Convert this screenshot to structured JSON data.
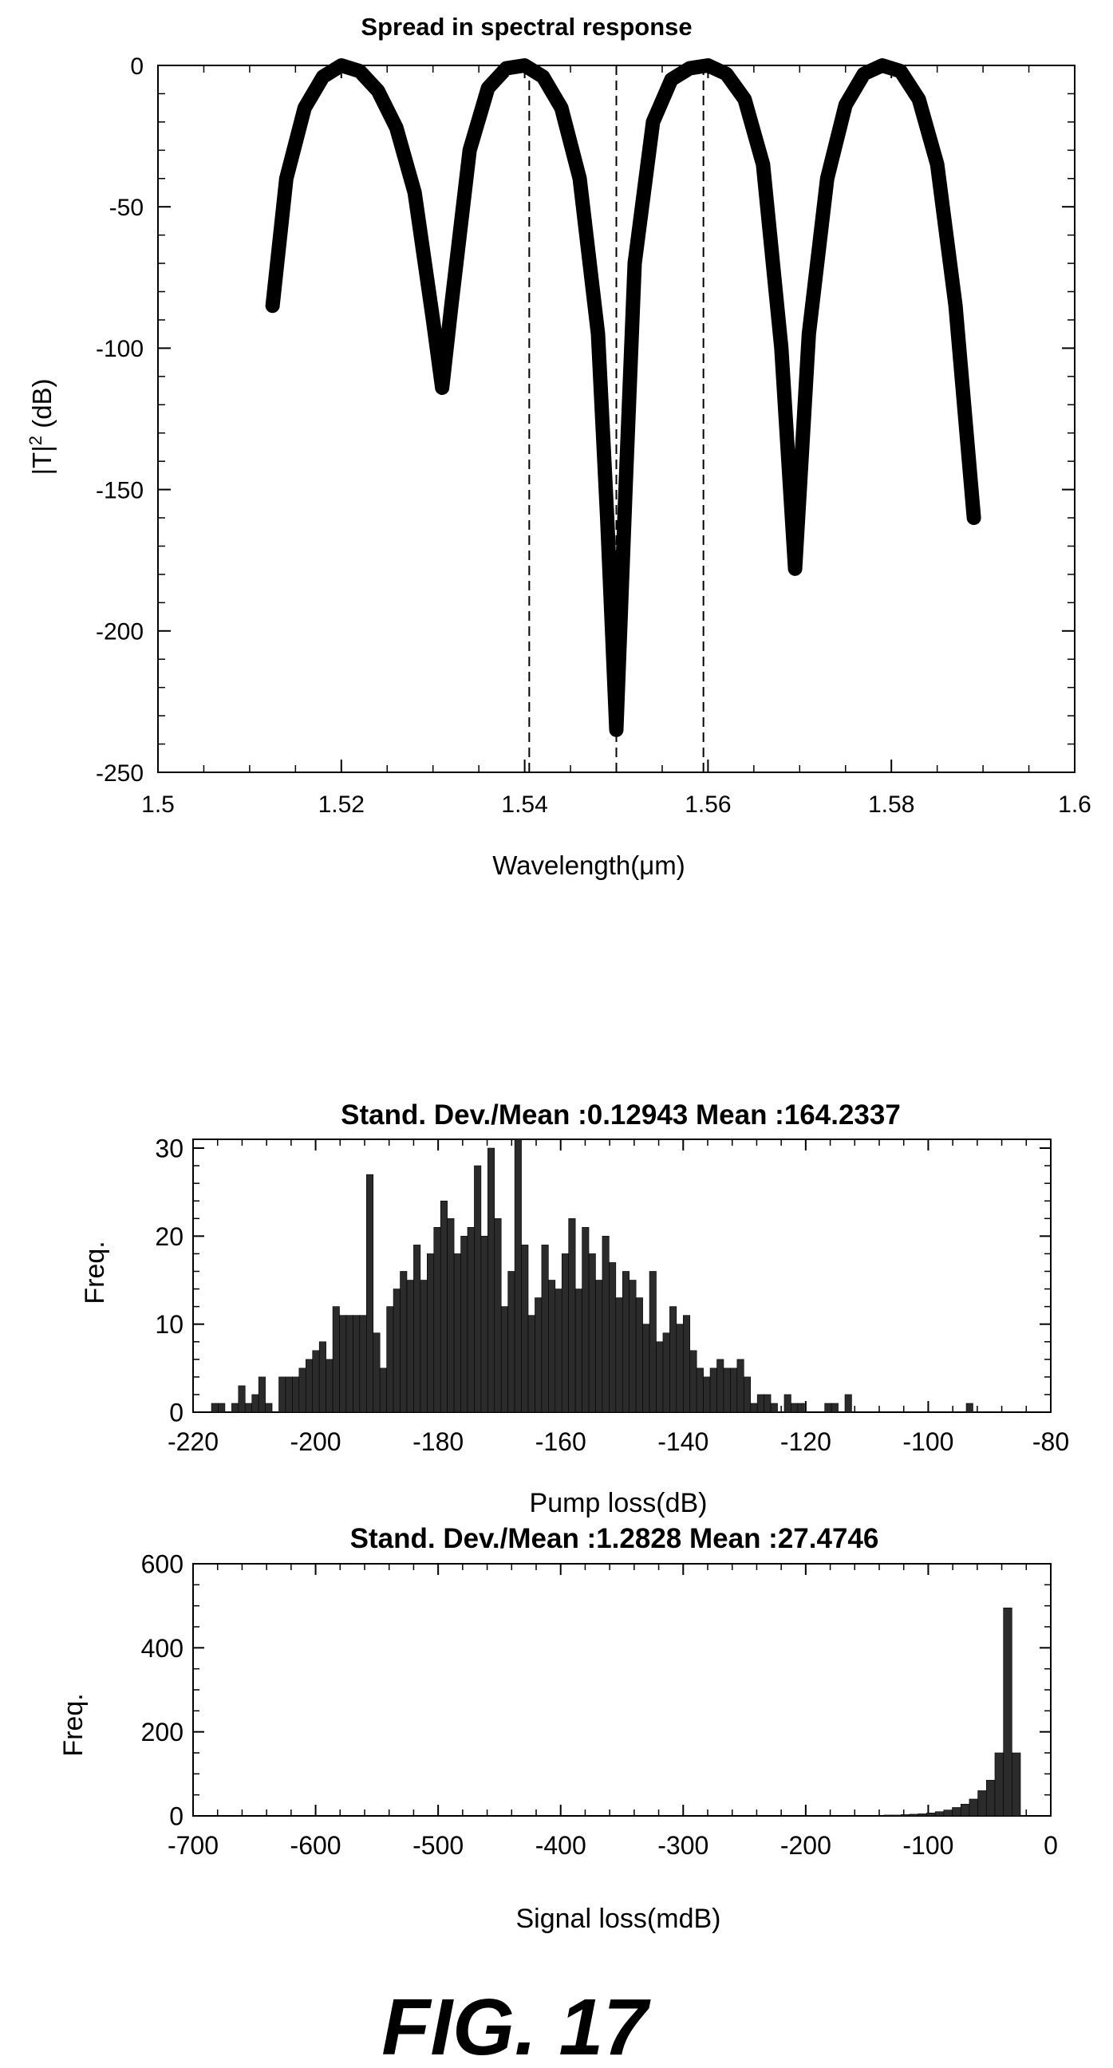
{
  "figure_label": "FIG. 17",
  "chart_data": [
    {
      "type": "line",
      "title": "Spread in spectral response",
      "xlabel": "Wavelength(μm)",
      "ylabel_main": "|T|",
      "ylabel_sup": "2",
      "ylabel_unit": " (dB)",
      "xlim": [
        1.5,
        1.6
      ],
      "ylim": [
        -250,
        0
      ],
      "xticks": [
        1.5,
        1.52,
        1.54,
        1.56,
        1.58,
        1.6
      ],
      "xtick_labels": [
        "1.5",
        "1.52",
        "1.54",
        "1.56",
        "1.58",
        "1.6"
      ],
      "yticks": [
        0,
        -50,
        -100,
        -150,
        -200,
        -250
      ],
      "ytick_labels": [
        "0",
        "-50",
        "-100",
        "-150",
        "-200",
        "-250"
      ],
      "grid": false,
      "series": [
        {
          "x": [
            1.5125,
            1.514,
            1.516,
            1.518,
            1.52,
            1.522,
            1.524,
            1.526,
            1.528,
            1.53,
            1.531,
            1.532,
            1.534,
            1.536,
            1.538,
            1.54,
            1.542,
            1.544,
            1.546,
            1.548,
            1.549,
            1.55,
            1.551,
            1.552,
            1.554,
            1.556,
            1.558,
            1.56,
            1.562,
            1.564,
            1.566,
            1.568,
            1.5695,
            1.571,
            1.573,
            1.575,
            1.577,
            1.579,
            1.581,
            1.583,
            1.585,
            1.587,
            1.589
          ],
          "y": [
            -85,
            -40,
            -15,
            -4,
            0,
            -2,
            -9,
            -22,
            -45,
            -90,
            -114,
            -85,
            -30,
            -8,
            -1,
            0,
            -4,
            -15,
            -40,
            -95,
            -160,
            -235,
            -150,
            -70,
            -20,
            -5,
            -1,
            0,
            -3,
            -12,
            -35,
            -100,
            -178,
            -95,
            -40,
            -14,
            -3,
            0,
            -2,
            -12,
            -35,
            -85,
            -160
          ]
        }
      ],
      "vertical_markers": [
        1.5405,
        1.55,
        1.5595
      ]
    },
    {
      "type": "bar",
      "title": "Stand. Dev./Mean :0.12943   Mean :164.2337",
      "xlabel": "Pump loss(dB)",
      "ylabel": "Freq.",
      "xlim": [
        -220,
        -80
      ],
      "ylim": [
        0,
        31
      ],
      "xticks": [
        -220,
        -200,
        -180,
        -160,
        -140,
        -120,
        -100,
        -80
      ],
      "xtick_labels": [
        "-220",
        "-200",
        "-180",
        "-160",
        "-140",
        "-120",
        "-100",
        "-80"
      ],
      "yticks": [
        0,
        10,
        20,
        30
      ],
      "ytick_labels": [
        "0",
        "10",
        "20",
        "30"
      ],
      "bin_width": 1.1,
      "bin_start": -217,
      "values": [
        1,
        1,
        0,
        1,
        3,
        1,
        2,
        4,
        1,
        0,
        4,
        4,
        4,
        5,
        6,
        7,
        8,
        6,
        12,
        11,
        11,
        11,
        11,
        27,
        9,
        5,
        12,
        14,
        16,
        15,
        19,
        15,
        18,
        21,
        24,
        22,
        18,
        20,
        21,
        28,
        20,
        30,
        22,
        12,
        16,
        31,
        19,
        11,
        13,
        19,
        15,
        14,
        18,
        22,
        14,
        21,
        18,
        15,
        20,
        17,
        13,
        16,
        15,
        13,
        10,
        16,
        8,
        9,
        12,
        10,
        11,
        7,
        5,
        4,
        5,
        6,
        5,
        5,
        6,
        4,
        1,
        2,
        2,
        1,
        0,
        2,
        1,
        1,
        0,
        0,
        0,
        1,
        1,
        0,
        2,
        0,
        0,
        0,
        0,
        0,
        0,
        0,
        0,
        0,
        0,
        0,
        0,
        0,
        0,
        0,
        0,
        0,
        1
      ]
    },
    {
      "type": "bar",
      "title": "Stand. Dev./Mean :1.2828  Mean :27.4746",
      "xlabel": "Signal loss(mdB)",
      "ylabel": "Freq.",
      "xlim": [
        -700,
        0
      ],
      "ylim": [
        0,
        600
      ],
      "xticks": [
        -700,
        -600,
        -500,
        -400,
        -300,
        -200,
        -100,
        0
      ],
      "xtick_labels": [
        "-700",
        "-600",
        "-500",
        "-400",
        "-300",
        "-200",
        "-100",
        "0"
      ],
      "yticks": [
        0,
        200,
        400,
        600
      ],
      "ytick_labels": [
        "0",
        "200",
        "400",
        "600"
      ],
      "bin_width": 6.96,
      "bin_start": -706.8,
      "values": [
        0,
        0,
        0,
        0,
        0,
        0,
        0,
        0,
        0,
        0,
        0,
        0,
        0,
        0,
        0,
        0,
        0,
        0,
        0,
        0,
        0,
        0,
        0,
        0,
        0,
        0,
        0,
        0,
        0,
        0,
        0,
        0,
        0,
        0,
        0,
        0,
        0,
        0,
        0,
        0,
        0,
        0,
        0,
        0,
        0,
        0,
        0,
        0,
        0,
        0,
        0,
        0,
        0,
        0,
        0,
        0,
        0,
        0,
        0,
        0,
        0,
        0,
        0,
        0,
        0,
        0,
        0,
        0,
        0,
        0,
        0,
        0,
        0,
        0,
        0,
        0,
        0,
        0,
        0,
        0,
        1,
        1,
        2,
        2,
        3,
        4,
        5,
        7,
        10,
        14,
        20,
        28,
        40,
        60,
        85,
        150,
        495,
        150
      ]
    }
  ]
}
